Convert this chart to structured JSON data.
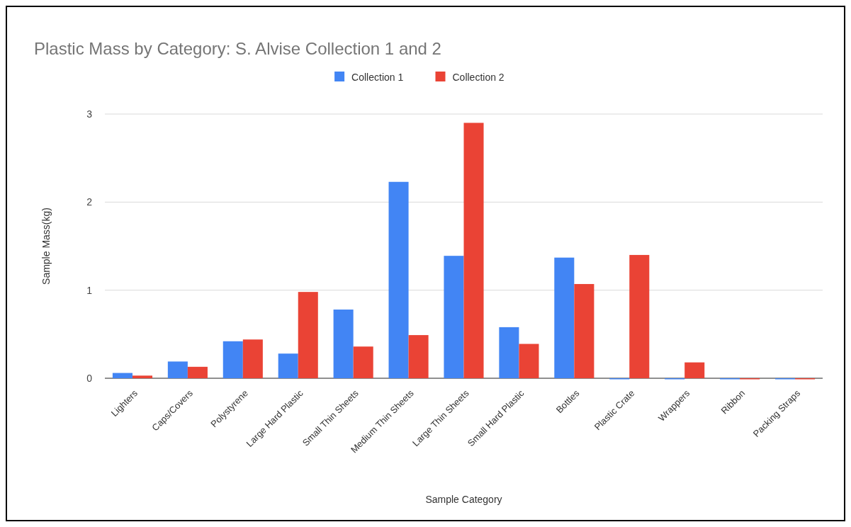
{
  "chart_data": {
    "type": "bar",
    "title": "Plastic Mass by Category: S. Alvise Collection 1 and 2",
    "xlabel": "Sample Category",
    "ylabel": "Sample Mass(kg)",
    "categories": [
      "Lighters",
      "Caps/Covers",
      "Polystyrene",
      "Large Hard Plastic",
      "Small Thin Sheets",
      "Medium Thin Sheets",
      "Large Thin Sheets",
      "Small Hard Plastic",
      "Bottles",
      "Plastic Crate",
      "Wrappers",
      "Ribbon",
      "Packing Straps"
    ],
    "series": [
      {
        "name": "Collection 1",
        "color": "#4285f4",
        "values": [
          0.06,
          0.19,
          0.42,
          0.28,
          0.78,
          2.23,
          1.39,
          0.58,
          1.37,
          0,
          0,
          0,
          0
        ]
      },
      {
        "name": "Collection 2",
        "color": "#ea4335",
        "values": [
          0.03,
          0.13,
          0.44,
          0.98,
          0.36,
          0.49,
          2.9,
          0.39,
          1.07,
          1.4,
          0.18,
          0,
          0
        ]
      }
    ],
    "ylim": [
      0,
      3
    ],
    "yticks": [
      0,
      1,
      2,
      3
    ],
    "grid": "y",
    "legend": "top"
  }
}
